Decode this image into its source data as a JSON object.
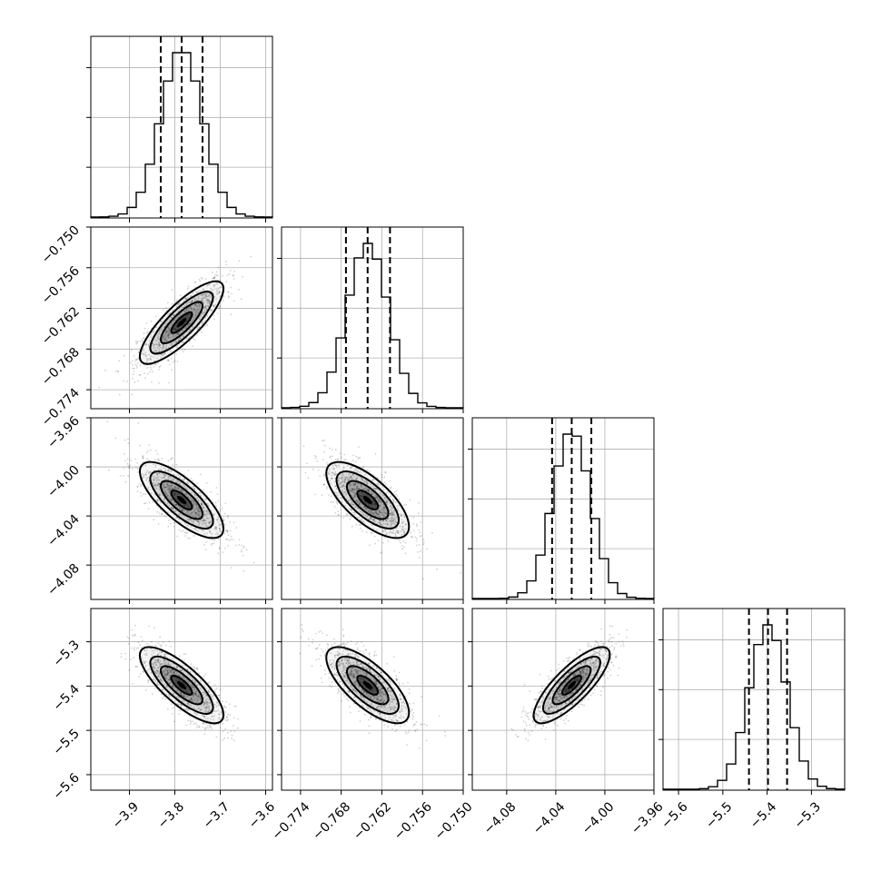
{
  "chart_data": {
    "type": "corner",
    "grid": true,
    "colors": {
      "line": "#000000",
      "grid": "#b0b0b0",
      "points": "#000000"
    },
    "parameters": [
      {
        "ticks": [
          "−3.9",
          "−3.8",
          "−3.7",
          "−3.6"
        ],
        "tick_values": [
          -3.9,
          -3.8,
          -3.7,
          -3.6
        ],
        "range": [
          -3.985,
          -3.585
        ],
        "mean": -3.785,
        "sd": 0.046,
        "quantiles": [
          -3.831,
          -3.785,
          -3.739
        ]
      },
      {
        "ticks": [
          "−0.774",
          "−0.768",
          "−0.762",
          "−0.756",
          "−0.750"
        ],
        "tick_values": [
          -0.774,
          -0.768,
          -0.762,
          -0.756,
          -0.75
        ],
        "range": [
          -0.7768,
          -0.75
        ],
        "mean": -0.7641,
        "sd": 0.00305,
        "quantiles": [
          -0.7673,
          -0.7641,
          -0.7608
        ]
      },
      {
        "ticks": [
          "−4.08",
          "−4.04",
          "−4.00",
          "−3.96"
        ],
        "tick_values": [
          -4.08,
          -4.04,
          -4.0,
          -3.96
        ],
        "range": [
          -4.108,
          -3.96
        ],
        "mean": -4.027,
        "sd": 0.0155,
        "quantiles": [
          -4.043,
          -4.027,
          -4.011
        ]
      },
      {
        "ticks": [
          "−5.6",
          "−5.5",
          "−5.4",
          "−5.3"
        ],
        "tick_values": [
          -5.6,
          -5.5,
          -5.4,
          -5.3
        ],
        "range": [
          -5.635,
          -5.225
        ],
        "mean": -5.398,
        "sd": 0.043,
        "quantiles": [
          -5.441,
          -5.398,
          -5.355
        ]
      }
    ],
    "correlations": [
      {
        "pair": [
          1,
          0
        ],
        "rho": 0.82
      },
      {
        "pair": [
          2,
          0
        ],
        "rho": -0.75
      },
      {
        "pair": [
          2,
          1
        ],
        "rho": -0.7
      },
      {
        "pair": [
          3,
          0
        ],
        "rho": -0.78
      },
      {
        "pair": [
          3,
          1
        ],
        "rho": -0.72
      },
      {
        "pair": [
          3,
          2
        ],
        "rho": 0.8
      }
    ],
    "contour_levels_sigma": [
      0.5,
      1.0,
      1.5,
      2.0
    ],
    "histogram_bins": 20
  }
}
